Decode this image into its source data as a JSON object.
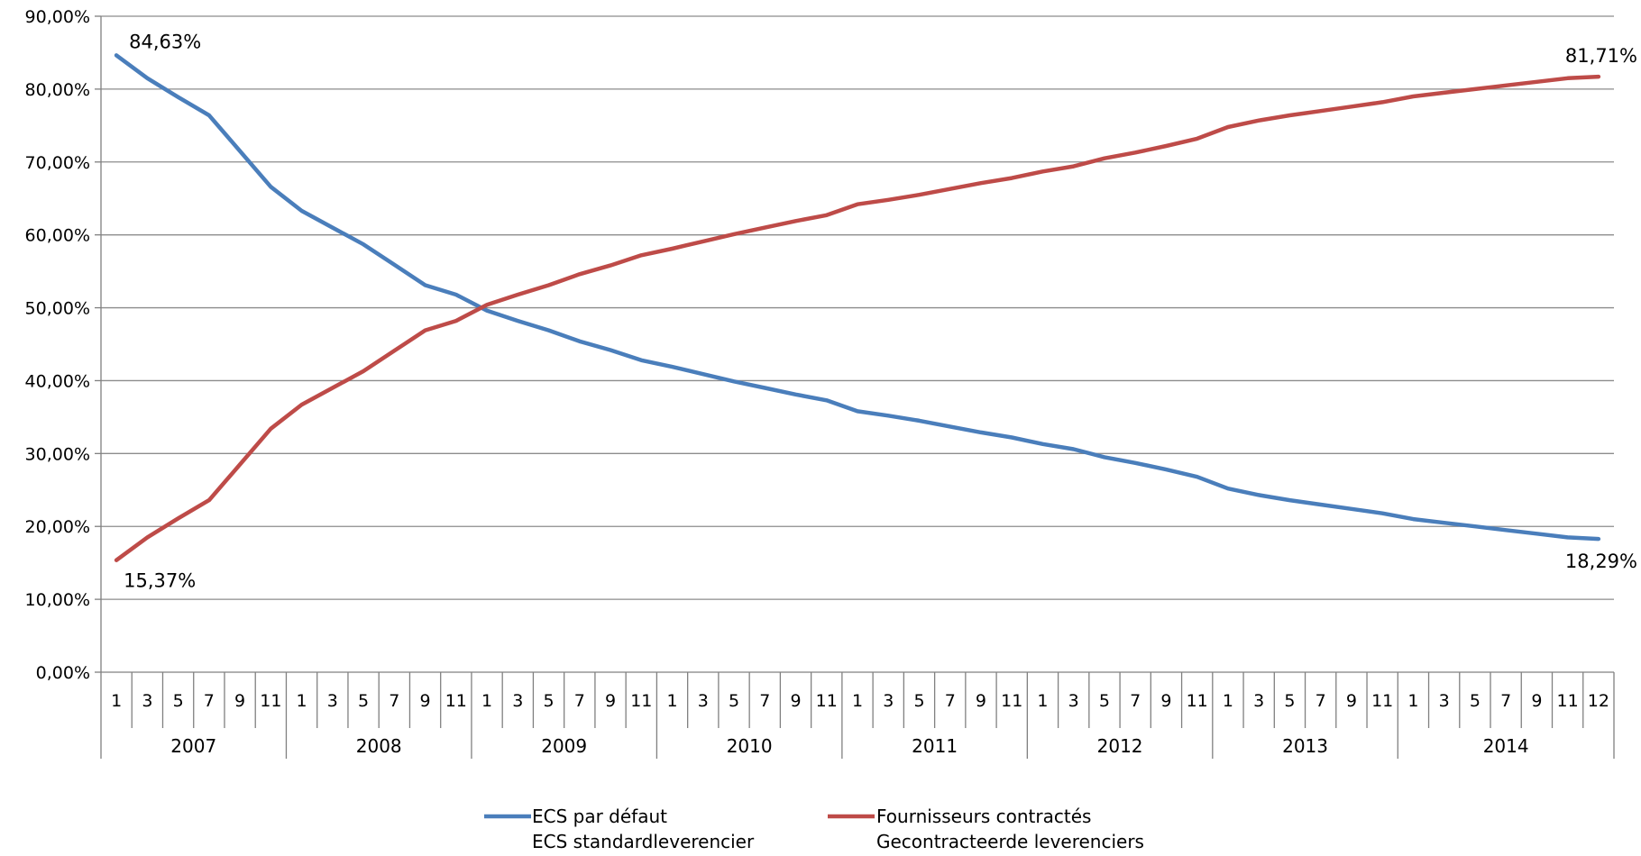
{
  "chart_data": {
    "type": "line",
    "title": "",
    "xlabel": "",
    "ylabel": "",
    "ylim": [
      0,
      90
    ],
    "y_ticks": [
      "0,00%",
      "10,00%",
      "20,00%",
      "30,00%",
      "40,00%",
      "50,00%",
      "60,00%",
      "70,00%",
      "80,00%",
      "90,00%"
    ],
    "grid": "horizontal",
    "legend_position": "bottom",
    "years": [
      "2007",
      "2008",
      "2009",
      "2010",
      "2011",
      "2012",
      "2013",
      "2014"
    ],
    "month_labels": [
      "1",
      "3",
      "5",
      "7",
      "9",
      "11",
      "1",
      "3",
      "5",
      "7",
      "9",
      "11",
      "1",
      "3",
      "5",
      "7",
      "9",
      "11",
      "1",
      "3",
      "5",
      "7",
      "9",
      "11",
      "1",
      "3",
      "5",
      "7",
      "9",
      "11",
      "1",
      "3",
      "5",
      "7",
      "9",
      "11",
      "1",
      "3",
      "5",
      "7",
      "9",
      "11",
      "1",
      "3",
      "5",
      "7",
      "9",
      "11",
      "12"
    ],
    "series": [
      {
        "name": "ECS par défaut",
        "name_line2": "ECS standardleverencier",
        "color": "#4A7EBB",
        "values": [
          84.63,
          81.5,
          78.9,
          76.4,
          71.5,
          66.6,
          63.3,
          61.0,
          58.7,
          55.9,
          53.1,
          51.8,
          49.6,
          48.2,
          46.9,
          45.4,
          44.2,
          42.8,
          41.9,
          40.9,
          39.9,
          39.0,
          38.1,
          37.3,
          35.8,
          35.2,
          34.5,
          33.7,
          32.9,
          32.2,
          31.3,
          30.6,
          29.5,
          28.7,
          27.8,
          26.8,
          25.2,
          24.3,
          23.6,
          23.0,
          22.4,
          21.8,
          21.0,
          20.5,
          20.0,
          19.5,
          19.0,
          18.5,
          18.29
        ],
        "start_label": "84,63%",
        "end_label": "18,29%"
      },
      {
        "name": "Fournisseurs contractés",
        "name_line2": "Gecontracteerde leverenciers",
        "color": "#BE4B48",
        "values": [
          15.37,
          18.5,
          21.1,
          23.6,
          28.5,
          33.4,
          36.7,
          39.0,
          41.3,
          44.1,
          46.9,
          48.2,
          50.4,
          51.8,
          53.1,
          54.6,
          55.8,
          57.2,
          58.1,
          59.1,
          60.1,
          61.0,
          61.9,
          62.7,
          64.2,
          64.8,
          65.5,
          66.3,
          67.1,
          67.8,
          68.7,
          69.4,
          70.5,
          71.3,
          72.2,
          73.2,
          74.8,
          75.7,
          76.4,
          77.0,
          77.6,
          78.2,
          79.0,
          79.5,
          80.0,
          80.5,
          81.0,
          81.5,
          81.71
        ],
        "start_label": "15,37%",
        "end_label": "81,71%"
      }
    ]
  }
}
